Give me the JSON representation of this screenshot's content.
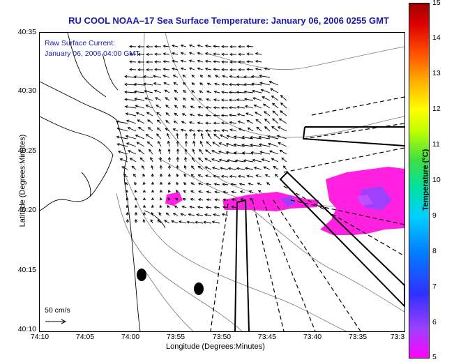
{
  "title": "RU COOL   NOAA–17  Sea Surface Temperature:  January 06, 2006 0255 GMT",
  "current_label_line1": "Raw Surface Current:",
  "current_label_line2": "January 06, 2006 04:00 GMT",
  "scale_label": "50 cm/s",
  "axes": {
    "xlabel": "Longitude (Degrees:Minutes)",
    "ylabel": "Latitude (Degrees:Minutes)",
    "xticks": [
      "74:10",
      "74:05",
      "74:00",
      "73:55",
      "73:50",
      "73:45",
      "73:40",
      "73:35",
      "73:3"
    ],
    "yticks": [
      "40:35",
      "40:30",
      "40:25",
      "40:20",
      "40:15",
      "40:10"
    ]
  },
  "colorbar": {
    "label": "Temperature (°C)",
    "ticks": [
      "15",
      "14",
      "13",
      "12",
      "11",
      "10",
      "9",
      "8",
      "7",
      "6",
      "5"
    ],
    "colors": {
      "low": "#ff00ff",
      "high": "#a00000"
    }
  },
  "colors": {
    "title": "#1a1ab0",
    "sst_patch": "#ff20e0",
    "sst_patch_warm": "#a040ff"
  }
}
